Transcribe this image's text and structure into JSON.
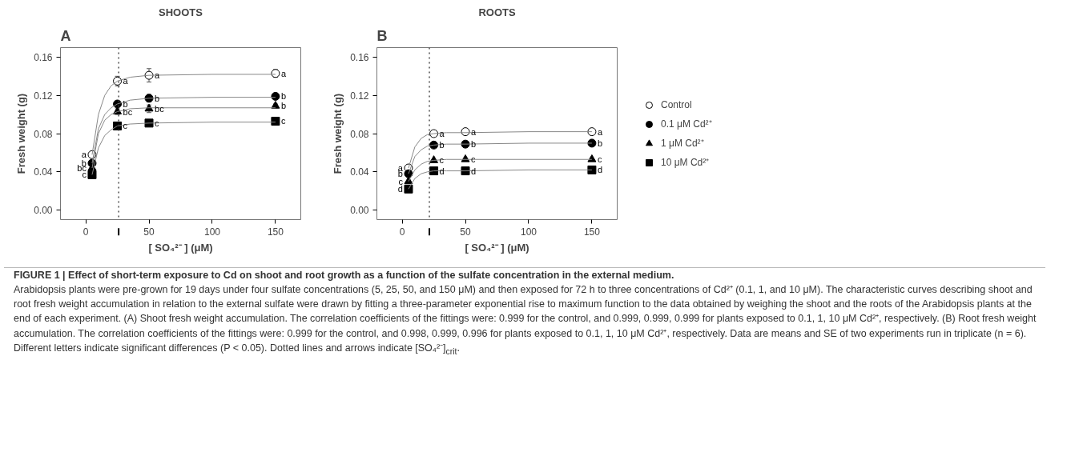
{
  "chart_data": [
    {
      "type": "scatter",
      "title": "SHOOTS",
      "ylabel": "Fresh weight (g)",
      "xlabel": "[ SO₄²⁻ ] (μM)",
      "annotations": [
        "A"
      ],
      "x": [
        5,
        25,
        50,
        150
      ],
      "xlim": [
        -20,
        170
      ],
      "xticks": [
        0,
        50,
        100,
        150
      ],
      "ylim": [
        -0.01,
        0.17
      ],
      "yticks": [
        {
          "value": 0,
          "label": "0.00"
        },
        {
          "value": 0.04,
          "label": "0.04"
        },
        {
          "value": 0.08,
          "label": "0.08"
        },
        {
          "value": 0.12,
          "label": "0.12"
        },
        {
          "value": 0.16,
          "label": "0.16"
        }
      ],
      "grid": false,
      "legend": false,
      "ref_lines": [
        {
          "axis": "x",
          "value": 26,
          "line_style": "dotted",
          "color": "#333333"
        }
      ],
      "series": [
        {
          "color": "#ffffff",
          "marker": "circle",
          "values": [
            0.058,
            0.135,
            0.141,
            0.143
          ],
          "errors": [
            0.002,
            0.005,
            0.007,
            0.004
          ],
          "value_labels": [
            "a",
            "a",
            "a",
            "a"
          ]
        },
        {
          "color": "#000000",
          "marker": "circle",
          "values": [
            0.049,
            0.111,
            0.117,
            0.119
          ],
          "errors": [
            0.002,
            0.003,
            0.004,
            0.002
          ],
          "value_labels": [
            "b",
            "b",
            "b",
            "b"
          ]
        },
        {
          "color": "#000000",
          "marker": "triangle",
          "values": [
            0.044,
            0.103,
            0.106,
            0.109
          ],
          "errors": [
            0.002,
            0.003,
            0.004,
            0.002
          ],
          "value_labels": [
            "bc",
            "bc",
            "bc",
            "b"
          ]
        },
        {
          "color": "#000000",
          "marker": "square",
          "values": [
            0.037,
            0.088,
            0.091,
            0.093
          ],
          "errors": [
            0.002,
            0.002,
            0.002,
            0.001
          ],
          "value_labels": [
            "c",
            "c",
            "c",
            "c"
          ]
        },
        {
          "type": "line",
          "color": "#888888",
          "marker": "none",
          "x": [
            5,
            10,
            15,
            20,
            25,
            35,
            50,
            100,
            150
          ],
          "values": [
            0.058,
            0.1,
            0.12,
            0.13,
            0.135,
            0.139,
            0.141,
            0.142,
            0.142
          ]
        },
        {
          "type": "line",
          "color": "#888888",
          "marker": "none",
          "x": [
            5,
            10,
            15,
            20,
            25,
            35,
            50,
            100,
            150
          ],
          "values": [
            0.049,
            0.085,
            0.1,
            0.107,
            0.111,
            0.115,
            0.117,
            0.118,
            0.118
          ]
        },
        {
          "type": "line",
          "color": "#888888",
          "marker": "none",
          "x": [
            5,
            10,
            15,
            20,
            25,
            35,
            50,
            100,
            150
          ],
          "values": [
            0.044,
            0.08,
            0.094,
            0.1,
            0.103,
            0.106,
            0.107,
            0.107,
            0.107
          ]
        },
        {
          "type": "line",
          "color": "#888888",
          "marker": "none",
          "x": [
            5,
            10,
            15,
            20,
            25,
            35,
            50,
            100,
            150
          ],
          "values": [
            0.037,
            0.065,
            0.078,
            0.084,
            0.088,
            0.09,
            0.091,
            0.092,
            0.092
          ]
        }
      ]
    },
    {
      "type": "scatter",
      "title": "ROOTS",
      "ylabel": "Fresh weight (g)",
      "xlabel": "[ SO₄²⁻ ] (μM)",
      "annotations": [
        "B",
        "FIGURE 1 | Effect of short-term exposure to Cd on shoot and root growth as a function of the sulfate concentration in the external medium.",
        "Arabidopsis plants were pre-grown for 19 days under four sulfate concentrations (5, 25, 50, and 150 μM) and then exposed for 72 h to three concentrations of Cd²⁺ (0.1, 1, and 10 μM). The characteristic curves describing shoot and root fresh weight accumulation in relation to the external sulfate were drawn by fitting a three-parameter exponential rise to maximum function to the data obtained by weighing the shoot and the roots of the Arabidopsis plants at the end of each experiment. (A) Shoot fresh weight accumulation. The correlation coefficients of the fittings were: 0.999 for the control, and 0.999, 0.999, 0.999 for plants exposed to 0.1, 1, 10 μM Cd²⁺, respectively. (B) Root fresh weight accumulation. The correlation coefficients of the fittings were: 0.999 for the control, and 0.998, 0.999, 0.996 for plants exposed to 0.1, 1, 10 μM Cd²⁺, respectively. Data are means and SE of two experiments run in triplicate (n = 6). Different letters indicate significant differences (P < 0.05). Dotted lines and arrows indicate [SO₄²⁻]$_{crit}$."
      ],
      "x": [
        5,
        25,
        50,
        150
      ],
      "xlim": [
        -20,
        170
      ],
      "xticks": [
        0,
        50,
        100,
        150
      ],
      "ylim": [
        -0.01,
        0.17
      ],
      "yticks": [
        {
          "value": 0,
          "label": "0.00"
        },
        {
          "value": 0.04,
          "label": "0.04"
        },
        {
          "value": 0.08,
          "label": "0.08"
        },
        {
          "value": 0.12,
          "label": "0.12"
        },
        {
          "value": 0.16,
          "label": "0.16"
        }
      ],
      "grid": false,
      "legend": "right",
      "ref_lines": [
        {
          "axis": "x",
          "value": 21.5,
          "line_style": "dotted",
          "color": "#333333"
        }
      ],
      "series": [
        {
          "name": "Control",
          "color": "#ffffff",
          "marker": "circle",
          "values": [
            0.044,
            0.08,
            0.082,
            0.082
          ],
          "errors": [
            0.001,
            0.003,
            0.003,
            0.002
          ],
          "value_labels": [
            "a",
            "a",
            "a",
            "a"
          ]
        },
        {
          "name": "0.1 μM Cd²⁺",
          "color": "#000000",
          "marker": "circle",
          "values": [
            0.038,
            0.068,
            0.069,
            0.07
          ],
          "value_labels": [
            "b",
            "b",
            "b",
            "b"
          ]
        },
        {
          "name": "1 μM Cd²⁺",
          "color": "#000000",
          "marker": "triangle",
          "values": [
            0.03,
            0.052,
            0.053,
            0.053
          ],
          "value_labels": [
            "c",
            "c",
            "c",
            "c"
          ]
        },
        {
          "name": "10 μM Cd²⁺",
          "color": "#000000",
          "marker": "square",
          "values": [
            0.022,
            0.041,
            0.041,
            0.042
          ],
          "value_labels": [
            "d",
            "d",
            "d",
            "d"
          ]
        },
        {
          "type": "line",
          "color": "#888888",
          "marker": "none",
          "x": [
            5,
            10,
            15,
            20,
            25,
            35,
            50,
            100,
            150
          ],
          "values": [
            0.044,
            0.066,
            0.075,
            0.079,
            0.08,
            0.081,
            0.081,
            0.082,
            0.082
          ]
        },
        {
          "type": "line",
          "color": "#888888",
          "marker": "none",
          "x": [
            5,
            10,
            15,
            20,
            25,
            35,
            50,
            100,
            150
          ],
          "values": [
            0.038,
            0.056,
            0.063,
            0.067,
            0.068,
            0.069,
            0.069,
            0.07,
            0.07
          ]
        },
        {
          "type": "line",
          "color": "#888888",
          "marker": "none",
          "x": [
            5,
            10,
            15,
            20,
            25,
            35,
            50,
            100,
            150
          ],
          "values": [
            0.03,
            0.042,
            0.048,
            0.051,
            0.052,
            0.053,
            0.053,
            0.053,
            0.053
          ]
        },
        {
          "type": "line",
          "color": "#888888",
          "marker": "none",
          "x": [
            5,
            10,
            15,
            20,
            25,
            35,
            50,
            100,
            150
          ],
          "values": [
            0.022,
            0.033,
            0.038,
            0.04,
            0.041,
            0.041,
            0.041,
            0.042,
            0.042
          ]
        }
      ]
    }
  ]
}
